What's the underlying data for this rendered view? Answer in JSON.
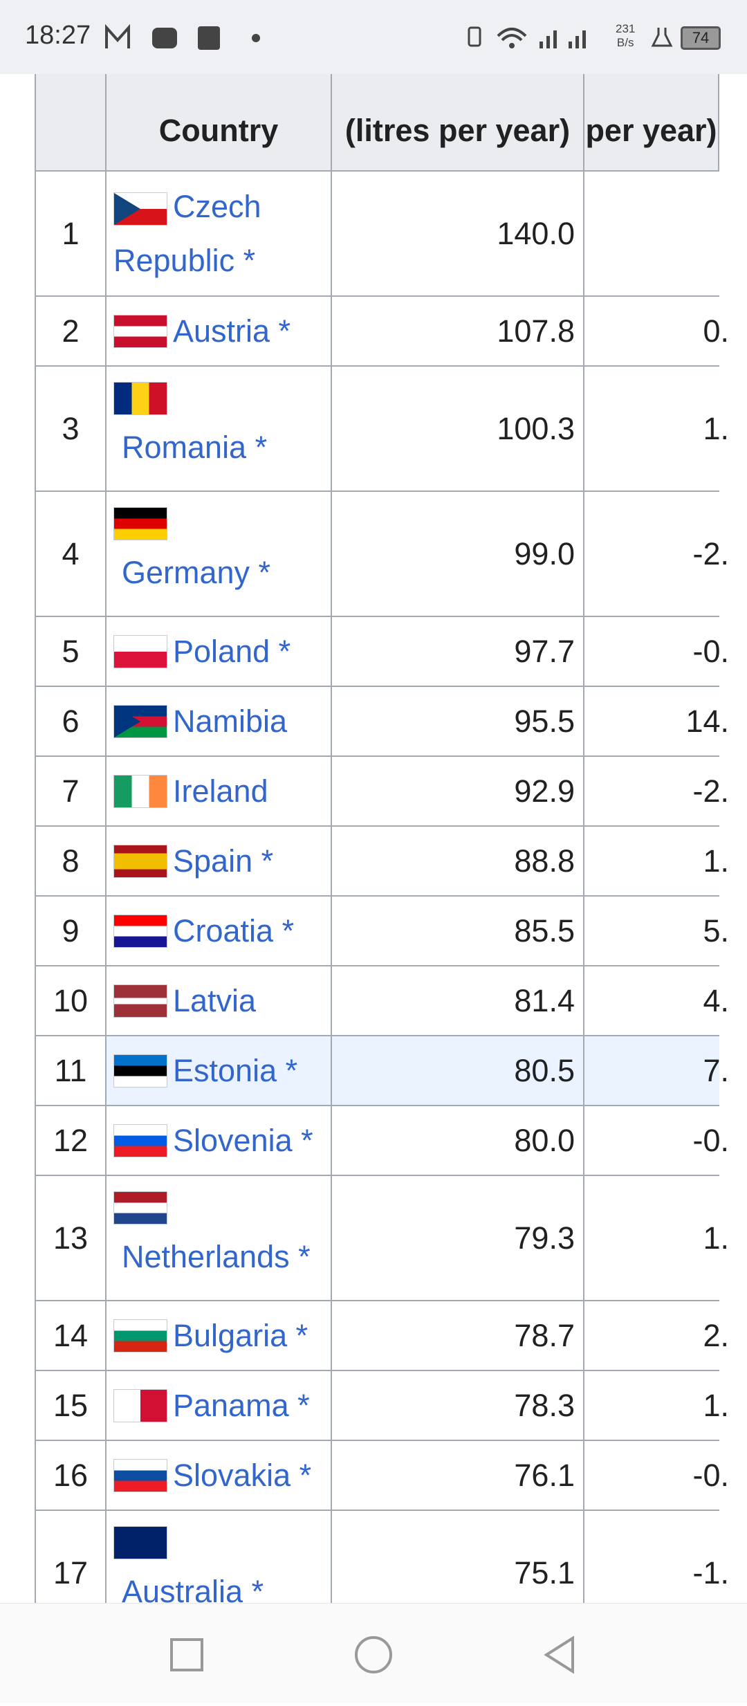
{
  "status_bar": {
    "time": "18:27",
    "net_speed": "231",
    "net_unit": "B/s",
    "battery": "74"
  },
  "table": {
    "headers": {
      "country": "Country",
      "consumption": "(litres per year)",
      "change": "per year)"
    },
    "rows": [
      {
        "rank": "1",
        "country": "Czech Republic *",
        "consumption": "140.0"
      },
      {
        "rank": "2",
        "country": "Austria *",
        "consumption": "107.8",
        "change": "0."
      },
      {
        "rank": "3",
        "country": "Romania *",
        "consumption": "100.3",
        "change": "1."
      },
      {
        "rank": "4",
        "country": "Germany *",
        "consumption": "99.0",
        "change": "-2."
      },
      {
        "rank": "5",
        "country": "Poland *",
        "consumption": "97.7",
        "change": "-0."
      },
      {
        "rank": "6",
        "country": "Namibia",
        "consumption": "95.5",
        "change": "14."
      },
      {
        "rank": "7",
        "country": "Ireland",
        "consumption": "92.9",
        "change": "-2."
      },
      {
        "rank": "8",
        "country": "Spain *",
        "consumption": "88.8",
        "change": "1."
      },
      {
        "rank": "9",
        "country": "Croatia *",
        "consumption": "85.5",
        "change": "5."
      },
      {
        "rank": "10",
        "country": "Latvia",
        "consumption": "81.4",
        "change": "4."
      },
      {
        "rank": "11",
        "country": "Estonia *",
        "consumption": "80.5",
        "change": "7."
      },
      {
        "rank": "12",
        "country": "Slovenia *",
        "consumption": "80.0",
        "change": "-0."
      },
      {
        "rank": "13",
        "country": "Netherlands *",
        "consumption": "79.3",
        "change": "1."
      },
      {
        "rank": "14",
        "country": "Bulgaria *",
        "consumption": "78.7",
        "change": "2."
      },
      {
        "rank": "15",
        "country": "Panama *",
        "consumption": "78.3",
        "change": "1."
      },
      {
        "rank": "16",
        "country": "Slovakia *",
        "consumption": "76.1",
        "change": "-0."
      },
      {
        "rank": "17",
        "country": "Australia *",
        "consumption": "75.1",
        "change": "-1."
      }
    ]
  }
}
